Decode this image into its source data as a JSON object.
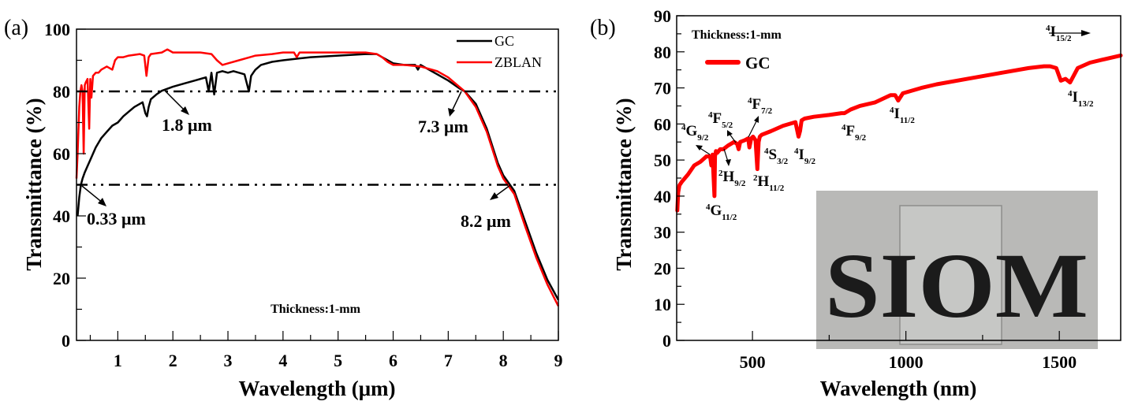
{
  "chart_data": [
    {
      "panel_label": "(a)",
      "type": "line",
      "title": "",
      "xlabel": "Wavelength (μm)",
      "ylabel": "Transmittance (%)",
      "xlim": [
        0.25,
        9
      ],
      "ylim": [
        0,
        100
      ],
      "xticks": [
        1,
        2,
        3,
        4,
        5,
        6,
        7,
        8,
        9
      ],
      "yticks": [
        0,
        20,
        40,
        60,
        80,
        100
      ],
      "grid": false,
      "legend": {
        "placement": "top-right",
        "entries": [
          "GC",
          "ZBLAN"
        ]
      },
      "series": [
        {
          "name": "GC",
          "color": "#000000",
          "x": [
            0.27,
            0.3,
            0.33,
            0.36,
            0.4,
            0.45,
            0.5,
            0.6,
            0.7,
            0.8,
            0.9,
            1.0,
            1.1,
            1.2,
            1.3,
            1.4,
            1.45,
            1.5,
            1.53,
            1.56,
            1.6,
            1.7,
            1.8,
            2.0,
            2.2,
            2.4,
            2.6,
            2.65,
            2.7,
            2.75,
            2.8,
            2.9,
            3.0,
            3.1,
            3.2,
            3.3,
            3.38,
            3.42,
            3.46,
            3.5,
            3.6,
            3.8,
            4.0,
            4.5,
            5.0,
            5.5,
            5.7,
            5.8,
            5.9,
            6.0,
            6.2,
            6.4,
            6.45,
            6.5,
            6.6,
            6.8,
            7.0,
            7.2,
            7.3,
            7.5,
            7.7,
            7.9,
            8.0,
            8.1,
            8.2,
            8.4,
            8.6,
            8.8,
            9.0
          ],
          "y": [
            40,
            46,
            50,
            52,
            54,
            56,
            58,
            62,
            65,
            67,
            69,
            70,
            72,
            73.5,
            75,
            76,
            76.5,
            73,
            72,
            75,
            77.5,
            79,
            80.2,
            81.5,
            82.5,
            83.5,
            84.5,
            80,
            86,
            79,
            86,
            86.5,
            86,
            86.5,
            86,
            85.5,
            80,
            85,
            86,
            87,
            88.5,
            89.5,
            90,
            91,
            91.5,
            92,
            92,
            91,
            90,
            89,
            88.5,
            88.5,
            87,
            88.5,
            87.5,
            85.5,
            83.5,
            81,
            80,
            76,
            68,
            57,
            53,
            50.5,
            48,
            38,
            28,
            19.5,
            13
          ]
        },
        {
          "name": "ZBLAN",
          "color": "#ff0000",
          "x": [
            0.25,
            0.27,
            0.3,
            0.32,
            0.34,
            0.36,
            0.38,
            0.4,
            0.42,
            0.45,
            0.48,
            0.5,
            0.52,
            0.55,
            0.6,
            0.65,
            0.7,
            0.8,
            0.9,
            0.95,
            1.0,
            1.1,
            1.2,
            1.4,
            1.48,
            1.52,
            1.56,
            1.6,
            1.8,
            1.9,
            2.0,
            2.2,
            2.5,
            2.7,
            2.8,
            2.9,
            3.0,
            3.2,
            3.4,
            3.5,
            3.8,
            4.0,
            4.2,
            4.25,
            4.3,
            4.5,
            5.0,
            5.5,
            5.7,
            5.8,
            5.9,
            6.0,
            6.2,
            6.5,
            6.8,
            7.0,
            7.2,
            7.3,
            7.5,
            7.7,
            7.9,
            8.0,
            8.1,
            8.2,
            8.4,
            8.6,
            8.8,
            9.0
          ],
          "y": [
            52,
            60,
            75,
            80,
            82,
            80,
            60,
            82,
            83,
            84,
            68,
            84,
            78,
            85,
            86,
            86,
            87,
            88,
            87,
            90,
            91,
            91,
            91.5,
            92,
            91.5,
            85,
            91,
            92,
            92.5,
            93.5,
            92.5,
            92.5,
            92.5,
            92,
            90,
            88.5,
            89,
            90,
            91,
            91.5,
            92,
            92.5,
            92.5,
            91,
            92.5,
            92.5,
            92.5,
            92.5,
            92,
            91,
            89.5,
            88.5,
            88.5,
            88,
            86.5,
            84.5,
            81.5,
            80,
            75,
            67,
            56,
            52,
            49.5,
            47,
            36.5,
            26.5,
            18,
            11
          ]
        }
      ],
      "reference_lines": [
        {
          "y": 80,
          "style": "dash-dot"
        },
        {
          "y": 50,
          "style": "dash-dot"
        }
      ],
      "annotations": [
        {
          "text": "1.8 μm",
          "points_to": [
            1.8,
            80
          ]
        },
        {
          "text": "7.3 μm",
          "points_to": [
            7.3,
            80
          ]
        },
        {
          "text": "0.33 μm",
          "points_to": [
            0.33,
            50
          ]
        },
        {
          "text": "8.2 μm",
          "points_to": [
            8.2,
            50
          ]
        },
        {
          "text": "Thickness:1-mm"
        }
      ]
    },
    {
      "panel_label": "(b)",
      "type": "line",
      "title": "",
      "xlabel": "Wavelength (nm)",
      "ylabel": "Transmittance (%)",
      "xlim": [
        253,
        1700
      ],
      "ylim": [
        0,
        90
      ],
      "xticks": [
        500,
        1000,
        1500
      ],
      "yticks": [
        0,
        10,
        20,
        30,
        40,
        50,
        60,
        70,
        80,
        90
      ],
      "grid": false,
      "legend": {
        "placement": "top-left",
        "entries": [
          "GC"
        ]
      },
      "series": [
        {
          "name": "GC",
          "color": "#ff0000",
          "x": [
            255,
            258,
            262,
            270,
            290,
            310,
            330,
            350,
            362,
            366,
            370,
            376,
            378,
            381,
            385,
            395,
            405,
            420,
            440,
            450,
            455,
            460,
            475,
            486,
            490,
            496,
            502,
            510,
            516,
            520,
            524,
            530,
            560,
            600,
            640,
            650,
            655,
            660,
            670,
            700,
            750,
            790,
            800,
            820,
            850,
            900,
            950,
            965,
            975,
            990,
            1050,
            1100,
            1200,
            1300,
            1400,
            1450,
            1470,
            1490,
            1505,
            1520,
            1535,
            1560,
            1600,
            1650,
            1700
          ],
          "y": [
            36,
            41,
            43,
            44,
            46,
            48.5,
            49.5,
            51,
            51,
            48.5,
            51.5,
            40,
            51,
            52.5,
            52,
            53,
            53,
            54,
            55,
            54.5,
            53,
            55,
            55.5,
            56,
            53.5,
            56,
            56.5,
            55.5,
            47.5,
            55,
            56.5,
            57,
            58,
            59.5,
            60.5,
            56.5,
            58,
            61,
            61.5,
            62,
            62.5,
            63,
            63,
            64,
            65,
            66,
            68,
            68,
            66.5,
            68.5,
            70,
            71,
            72.5,
            74,
            75.5,
            76,
            76,
            75.5,
            72,
            72.5,
            71.5,
            75.5,
            77,
            78,
            79
          ]
        }
      ],
      "annotations": [
        {
          "text": "Thickness:1-mm"
        },
        {
          "level": "4",
          "term": "G",
          "sub": "9/2"
        },
        {
          "level": "4",
          "term": "F",
          "sub": "5/2"
        },
        {
          "level": "4",
          "term": "F",
          "sub": "7/2"
        },
        {
          "level": "2",
          "term": "H",
          "sub": "9/2"
        },
        {
          "level": "4",
          "term": "S",
          "sub": "3/2"
        },
        {
          "level": "4",
          "term": "I",
          "sub": "9/2"
        },
        {
          "level": "2",
          "term": "H",
          "sub": "11/2"
        },
        {
          "level": "4",
          "term": "G",
          "sub": "11/2"
        },
        {
          "level": "4",
          "term": "F",
          "sub": "9/2"
        },
        {
          "level": "4",
          "term": "I",
          "sub": "11/2"
        },
        {
          "level": "4",
          "term": "I",
          "sub": "13/2"
        },
        {
          "level": "4",
          "term": "I",
          "sub": "15/2"
        }
      ],
      "inset_photo_text": "SIOM"
    }
  ]
}
